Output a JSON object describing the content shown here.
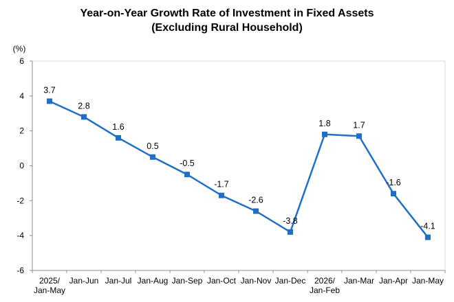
{
  "chart_data": {
    "type": "line",
    "title": "Year-on-Year Growth Rate of Investment in Fixed Assets",
    "subtitle": "(Excluding Rural Household)",
    "ylabel": "(%)",
    "ylim": [
      -6,
      6
    ],
    "yticks": [
      6,
      4,
      2,
      0,
      -2,
      -4,
      -6
    ],
    "grid": false,
    "categories": [
      [
        "2025/",
        "Jan-May"
      ],
      [
        "Jan-Jun"
      ],
      [
        "Jan-Jul"
      ],
      [
        "Jan-Aug"
      ],
      [
        "Jan-Sep"
      ],
      [
        "Jan-Oct"
      ],
      [
        "Jan-Nov"
      ],
      [
        "Jan-Dec"
      ],
      [
        "2026/",
        "Jan-Feb"
      ],
      [
        "Jan-Mar"
      ],
      [
        "Jan-Apr"
      ],
      [
        "Jan-May"
      ]
    ],
    "series": [
      {
        "values": [
          3.7,
          2.8,
          1.6,
          0.5,
          -0.5,
          -1.7,
          -2.6,
          -3.8,
          1.8,
          1.7,
          -1.6,
          -4.1
        ],
        "labels": [
          "3.7",
          "2.8",
          "1.6",
          "0.5",
          "-0.5",
          "-1.7",
          "-2.6",
          "-3.8",
          "1.8",
          "1.7",
          "-1.6",
          "-4.1"
        ],
        "color": "#1f6fc6"
      }
    ]
  }
}
